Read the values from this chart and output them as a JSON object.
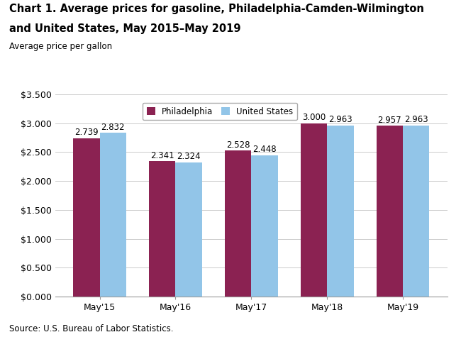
{
  "title_line1": "Chart 1. Average prices for gasoline, Philadelphia-Camden-Wilmington",
  "title_line2": "and United States, May 2015–May 2019",
  "axis_label": "Average price per gallon",
  "source": "Source: U.S. Bureau of Labor Statistics.",
  "categories": [
    "May'15",
    "May'16",
    "May'17",
    "May'18",
    "May'19"
  ],
  "philadelphia_values": [
    2.739,
    2.341,
    2.528,
    3.0,
    2.957
  ],
  "us_values": [
    2.832,
    2.324,
    2.448,
    2.963,
    2.963
  ],
  "philadelphia_color": "#8B2252",
  "us_color": "#92C5E8",
  "ylim": [
    0,
    3.5
  ],
  "yticks": [
    0.0,
    0.5,
    1.0,
    1.5,
    2.0,
    2.5,
    3.0,
    3.5
  ],
  "ytick_labels": [
    "$0.000",
    "$0.500",
    "$1.000",
    "$1.500",
    "$2.000",
    "$2.500",
    "$3.000",
    "$3.500"
  ],
  "legend_philadelphia": "Philadelphia",
  "legend_us": "United States",
  "bar_width": 0.35,
  "title_fontsize": 10.5,
  "axis_label_fontsize": 8.5,
  "tick_fontsize": 9,
  "annotation_fontsize": 8.5,
  "source_fontsize": 8.5,
  "background_color": "#ffffff"
}
